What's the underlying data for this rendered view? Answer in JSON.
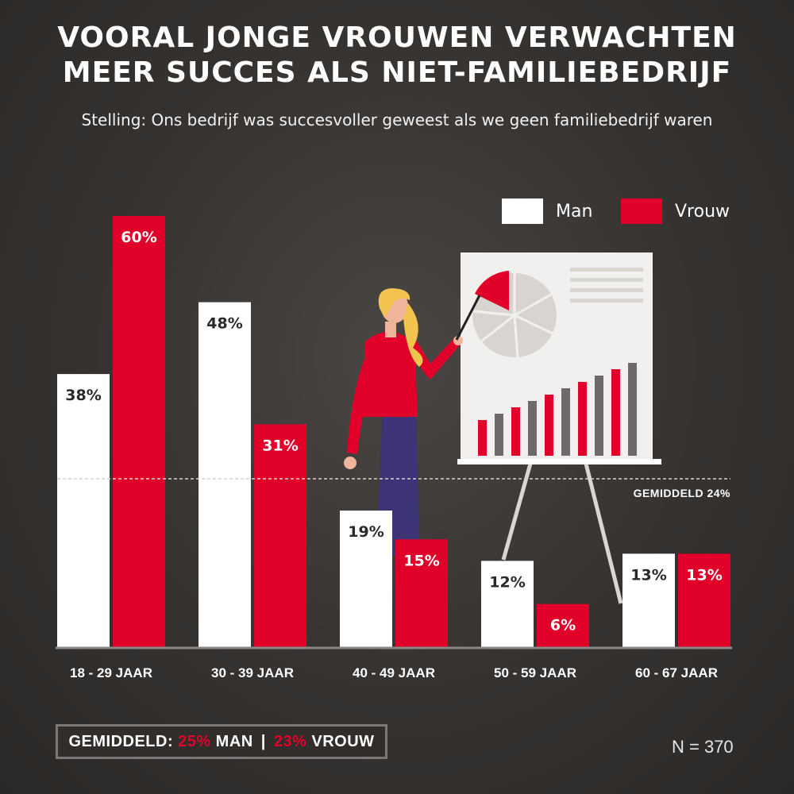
{
  "title_line1": "VOORAL JONGE VROUWEN VERWACHTEN",
  "title_line2": "MEER SUCCES ALS NIET-FAMILIEBEDRIJF",
  "subtitle": "Stelling: Ons bedrijf was succesvoller geweest als we geen familiebedrijf waren",
  "colors": {
    "man": "#ffffff",
    "vrouw": "#e1002a",
    "background": "#363331"
  },
  "chart_data": {
    "type": "bar",
    "categories": [
      "18 - 29 JAAR",
      "30 - 39 JAAR",
      "40 - 49 JAAR",
      "50 - 59 JAAR",
      "60 - 67 JAAR"
    ],
    "series": [
      {
        "name": "Man",
        "values": [
          38,
          48,
          19,
          12,
          13
        ],
        "labels": [
          "38%",
          "48%",
          "19%",
          "12%",
          "13%"
        ],
        "color": "#ffffff"
      },
      {
        "name": "Vrouw",
        "values": [
          60,
          31,
          15,
          6,
          13
        ],
        "labels": [
          "60%",
          "31%",
          "15%",
          "6%",
          "13%"
        ],
        "color": "#e1002a"
      }
    ],
    "ylim": [
      0,
      60
    ],
    "reference_line": {
      "value": 24,
      "label": "GEMIDDELD 24%"
    },
    "legend_position": "top-right",
    "grid": false
  },
  "summary": {
    "prefix": "GEMIDDELD:",
    "man_value": "25%",
    "man_label": "MAN",
    "separator": "|",
    "vrouw_value": "23%",
    "vrouw_label": "VROUW"
  },
  "sample_size": "N = 370",
  "illustration": {
    "icons": [
      "presenter-woman-icon",
      "easel-presentation-board-icon",
      "pie-chart-icon",
      "bar-chart-icon"
    ]
  }
}
